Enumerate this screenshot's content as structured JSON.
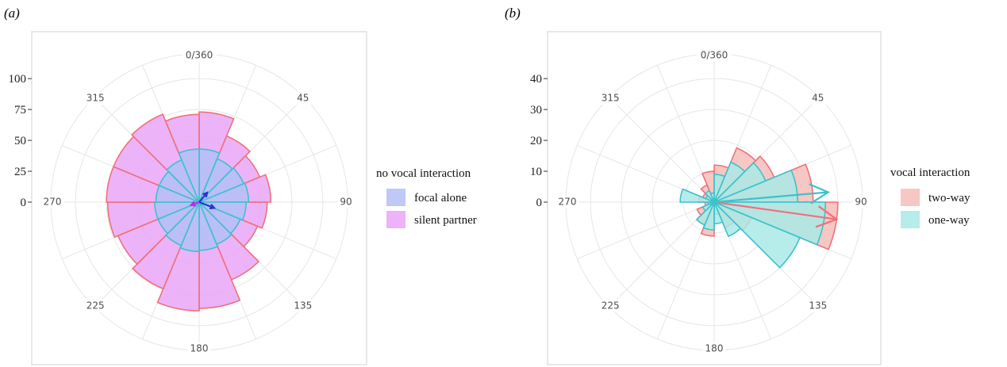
{
  "chart_data": [
    {
      "panel": "(a)",
      "type": "bar",
      "coordinate_system": "polar",
      "theta_direction": "clockwise",
      "theta_zero": "top",
      "angle_labels": [
        "0/360",
        "45",
        "90",
        "135",
        "180",
        "225",
        "270",
        "315"
      ],
      "bin_width_deg": 22.5,
      "categories": [
        11.25,
        33.75,
        56.25,
        78.75,
        101.25,
        123.75,
        146.25,
        168.75,
        191.25,
        213.75,
        236.25,
        258.75,
        281.25,
        303.75,
        326.25,
        348.75
      ],
      "radial_ticks": [
        0,
        25,
        50,
        75,
        100
      ],
      "rlim": [
        0,
        120
      ],
      "grid": true,
      "legend_title": "no vocal interaction",
      "legend_position": "right",
      "series": [
        {
          "name": "silent partner",
          "fill": "#e9a6f7",
          "stroke": "#f0707a",
          "values": [
            73,
            58,
            53,
            58,
            55,
            51,
            68,
            86,
            88,
            76,
            71,
            74,
            75,
            75,
            77,
            71
          ]
        },
        {
          "name": "focal alone",
          "fill": "#b3bff7",
          "stroke": "#3cc2cc",
          "values": [
            43,
            38,
            39,
            40,
            38,
            36,
            37,
            39,
            40,
            38,
            36,
            36,
            35,
            35,
            37,
            43
          ]
        }
      ],
      "mean_vectors": [
        {
          "series": "focal alone",
          "color": "#2a34d6",
          "angle": 111,
          "length": 13
        },
        {
          "series": "focal alone",
          "color": "#2a34d6",
          "angle": 40,
          "length": 10
        },
        {
          "series": "silent partner",
          "color": "#d020e8",
          "angle": 250,
          "length": 7
        }
      ]
    },
    {
      "panel": "(b)",
      "type": "bar",
      "coordinate_system": "polar",
      "theta_direction": "clockwise",
      "theta_zero": "top",
      "angle_labels": [
        "0/360",
        "45",
        "90",
        "135",
        "180",
        "225",
        "270",
        "315"
      ],
      "bin_width_deg": 22.5,
      "categories": [
        11.25,
        33.75,
        56.25,
        78.75,
        101.25,
        123.75,
        146.25,
        168.75,
        191.25,
        213.75,
        236.25,
        258.75,
        281.25,
        303.75,
        326.25,
        348.75
      ],
      "radial_ticks": [
        0,
        10,
        20,
        30,
        40
      ],
      "rlim": [
        0,
        48
      ],
      "grid": true,
      "legend_title": "vocal interaction",
      "legend_position": "right",
      "series": [
        {
          "name": "two-way",
          "fill": "#f6bdb8",
          "stroke": "#f0707a",
          "values": [
            12,
            19,
            21,
            32,
            40,
            13,
            9,
            4,
            11,
            8,
            6,
            3,
            5,
            4,
            6,
            10
          ]
        },
        {
          "name": "one-way",
          "fill": "#a9e9e6",
          "stroke": "#3cc2cc",
          "values": [
            9,
            14,
            18,
            27,
            36,
            30,
            12,
            7,
            9,
            8,
            4,
            2,
            11,
            3,
            4,
            3
          ]
        }
      ],
      "mean_vectors": [
        {
          "series": "two-way",
          "color": "#f0707a",
          "angle": 98,
          "length": 40
        },
        {
          "series": "one-way",
          "color": "#3cc2cc",
          "angle": 85,
          "length": 37
        }
      ]
    }
  ]
}
